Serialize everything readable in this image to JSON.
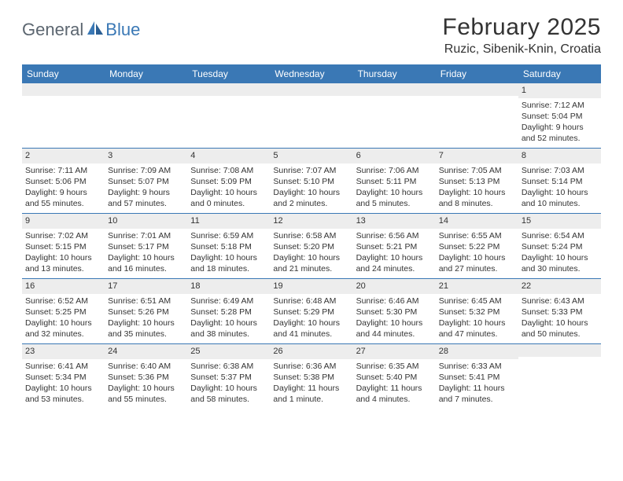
{
  "brand": {
    "name1": "General",
    "name2": "Blue"
  },
  "title": "February 2025",
  "location": "Ruzic, Sibenik-Knin, Croatia",
  "colors": {
    "header_bg": "#3a78b5",
    "header_text": "#ffffff",
    "daynum_bg": "#ededed",
    "border": "#3a78b5",
    "text": "#333333"
  },
  "weekdays": [
    "Sunday",
    "Monday",
    "Tuesday",
    "Wednesday",
    "Thursday",
    "Friday",
    "Saturday"
  ],
  "weeks": [
    [
      {
        "n": "",
        "sr": "",
        "ss": "",
        "dl": ""
      },
      {
        "n": "",
        "sr": "",
        "ss": "",
        "dl": ""
      },
      {
        "n": "",
        "sr": "",
        "ss": "",
        "dl": ""
      },
      {
        "n": "",
        "sr": "",
        "ss": "",
        "dl": ""
      },
      {
        "n": "",
        "sr": "",
        "ss": "",
        "dl": ""
      },
      {
        "n": "",
        "sr": "",
        "ss": "",
        "dl": ""
      },
      {
        "n": "1",
        "sr": "Sunrise: 7:12 AM",
        "ss": "Sunset: 5:04 PM",
        "dl": "Daylight: 9 hours and 52 minutes."
      }
    ],
    [
      {
        "n": "2",
        "sr": "Sunrise: 7:11 AM",
        "ss": "Sunset: 5:06 PM",
        "dl": "Daylight: 9 hours and 55 minutes."
      },
      {
        "n": "3",
        "sr": "Sunrise: 7:09 AM",
        "ss": "Sunset: 5:07 PM",
        "dl": "Daylight: 9 hours and 57 minutes."
      },
      {
        "n": "4",
        "sr": "Sunrise: 7:08 AM",
        "ss": "Sunset: 5:09 PM",
        "dl": "Daylight: 10 hours and 0 minutes."
      },
      {
        "n": "5",
        "sr": "Sunrise: 7:07 AM",
        "ss": "Sunset: 5:10 PM",
        "dl": "Daylight: 10 hours and 2 minutes."
      },
      {
        "n": "6",
        "sr": "Sunrise: 7:06 AM",
        "ss": "Sunset: 5:11 PM",
        "dl": "Daylight: 10 hours and 5 minutes."
      },
      {
        "n": "7",
        "sr": "Sunrise: 7:05 AM",
        "ss": "Sunset: 5:13 PM",
        "dl": "Daylight: 10 hours and 8 minutes."
      },
      {
        "n": "8",
        "sr": "Sunrise: 7:03 AM",
        "ss": "Sunset: 5:14 PM",
        "dl": "Daylight: 10 hours and 10 minutes."
      }
    ],
    [
      {
        "n": "9",
        "sr": "Sunrise: 7:02 AM",
        "ss": "Sunset: 5:15 PM",
        "dl": "Daylight: 10 hours and 13 minutes."
      },
      {
        "n": "10",
        "sr": "Sunrise: 7:01 AM",
        "ss": "Sunset: 5:17 PM",
        "dl": "Daylight: 10 hours and 16 minutes."
      },
      {
        "n": "11",
        "sr": "Sunrise: 6:59 AM",
        "ss": "Sunset: 5:18 PM",
        "dl": "Daylight: 10 hours and 18 minutes."
      },
      {
        "n": "12",
        "sr": "Sunrise: 6:58 AM",
        "ss": "Sunset: 5:20 PM",
        "dl": "Daylight: 10 hours and 21 minutes."
      },
      {
        "n": "13",
        "sr": "Sunrise: 6:56 AM",
        "ss": "Sunset: 5:21 PM",
        "dl": "Daylight: 10 hours and 24 minutes."
      },
      {
        "n": "14",
        "sr": "Sunrise: 6:55 AM",
        "ss": "Sunset: 5:22 PM",
        "dl": "Daylight: 10 hours and 27 minutes."
      },
      {
        "n": "15",
        "sr": "Sunrise: 6:54 AM",
        "ss": "Sunset: 5:24 PM",
        "dl": "Daylight: 10 hours and 30 minutes."
      }
    ],
    [
      {
        "n": "16",
        "sr": "Sunrise: 6:52 AM",
        "ss": "Sunset: 5:25 PM",
        "dl": "Daylight: 10 hours and 32 minutes."
      },
      {
        "n": "17",
        "sr": "Sunrise: 6:51 AM",
        "ss": "Sunset: 5:26 PM",
        "dl": "Daylight: 10 hours and 35 minutes."
      },
      {
        "n": "18",
        "sr": "Sunrise: 6:49 AM",
        "ss": "Sunset: 5:28 PM",
        "dl": "Daylight: 10 hours and 38 minutes."
      },
      {
        "n": "19",
        "sr": "Sunrise: 6:48 AM",
        "ss": "Sunset: 5:29 PM",
        "dl": "Daylight: 10 hours and 41 minutes."
      },
      {
        "n": "20",
        "sr": "Sunrise: 6:46 AM",
        "ss": "Sunset: 5:30 PM",
        "dl": "Daylight: 10 hours and 44 minutes."
      },
      {
        "n": "21",
        "sr": "Sunrise: 6:45 AM",
        "ss": "Sunset: 5:32 PM",
        "dl": "Daylight: 10 hours and 47 minutes."
      },
      {
        "n": "22",
        "sr": "Sunrise: 6:43 AM",
        "ss": "Sunset: 5:33 PM",
        "dl": "Daylight: 10 hours and 50 minutes."
      }
    ],
    [
      {
        "n": "23",
        "sr": "Sunrise: 6:41 AM",
        "ss": "Sunset: 5:34 PM",
        "dl": "Daylight: 10 hours and 53 minutes."
      },
      {
        "n": "24",
        "sr": "Sunrise: 6:40 AM",
        "ss": "Sunset: 5:36 PM",
        "dl": "Daylight: 10 hours and 55 minutes."
      },
      {
        "n": "25",
        "sr": "Sunrise: 6:38 AM",
        "ss": "Sunset: 5:37 PM",
        "dl": "Daylight: 10 hours and 58 minutes."
      },
      {
        "n": "26",
        "sr": "Sunrise: 6:36 AM",
        "ss": "Sunset: 5:38 PM",
        "dl": "Daylight: 11 hours and 1 minute."
      },
      {
        "n": "27",
        "sr": "Sunrise: 6:35 AM",
        "ss": "Sunset: 5:40 PM",
        "dl": "Daylight: 11 hours and 4 minutes."
      },
      {
        "n": "28",
        "sr": "Sunrise: 6:33 AM",
        "ss": "Sunset: 5:41 PM",
        "dl": "Daylight: 11 hours and 7 minutes."
      },
      {
        "n": "",
        "sr": "",
        "ss": "",
        "dl": ""
      }
    ]
  ]
}
